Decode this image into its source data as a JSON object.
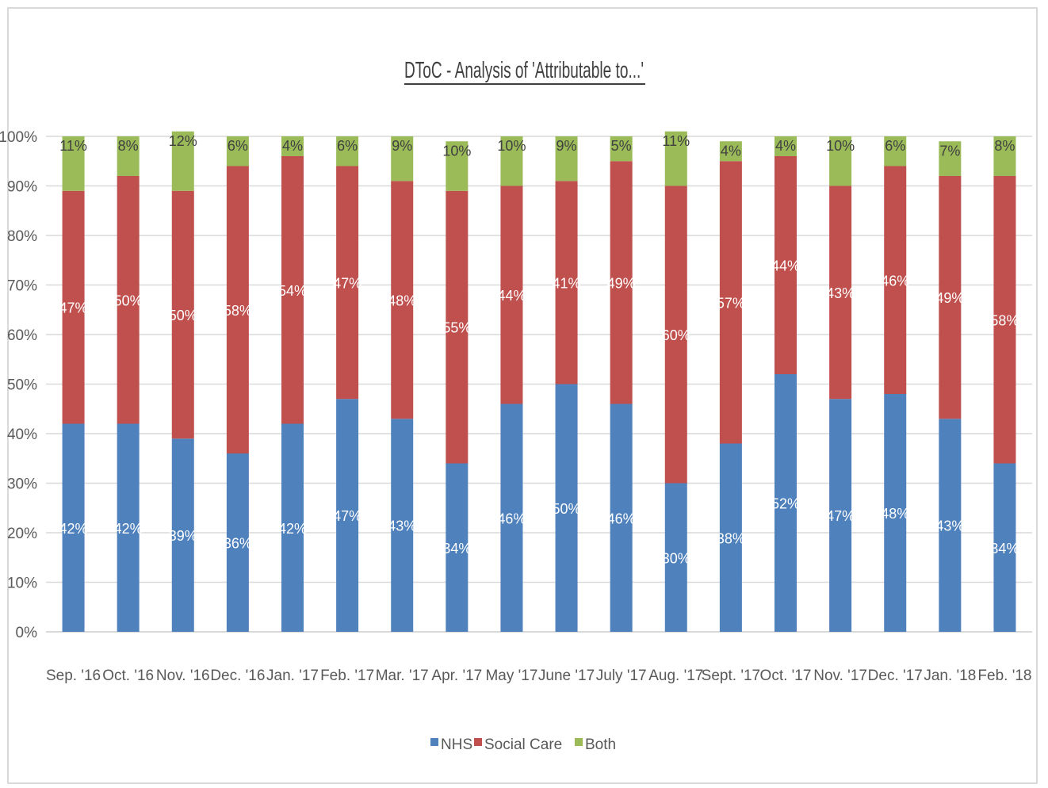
{
  "chart_data": {
    "type": "bar",
    "stacked": true,
    "title": "DToC - Analysis of 'Attributable to...'",
    "xlabel": "",
    "ylabel": "",
    "ylim": [
      0,
      100
    ],
    "yticks": [
      "0%",
      "10%",
      "20%",
      "30%",
      "40%",
      "50%",
      "60%",
      "70%",
      "80%",
      "90%",
      "100%"
    ],
    "grid": true,
    "legend_position": "bottom",
    "categories": [
      "Sep. '16",
      "Oct. '16",
      "Nov. '16",
      "Dec. '16",
      "Jan. '17",
      "Feb. '17",
      "Mar. '17",
      "Apr. '17",
      "May '17",
      "June '17",
      "July '17",
      "Aug. '17",
      "Sept. '17",
      "Oct. '17",
      "Nov. '17",
      "Dec. '17",
      "Jan. '18",
      "Feb. '18"
    ],
    "series": [
      {
        "name": "NHS",
        "color": "#4f81bd",
        "label_color": "#ffffff",
        "values": [
          42,
          42,
          39,
          36,
          42,
          47,
          43,
          34,
          46,
          50,
          46,
          30,
          38,
          52,
          47,
          48,
          43,
          34
        ],
        "labels": [
          "42%",
          "42%",
          "39%",
          "36%",
          "42%",
          "47%",
          "43%",
          "34%",
          "46%",
          "50%",
          "46%",
          "30%",
          "38%",
          "52%",
          "47%",
          "48%",
          "43%",
          "34%"
        ]
      },
      {
        "name": "Social Care",
        "color": "#c0504d",
        "label_color": "#ffffff",
        "values": [
          47,
          50,
          50,
          58,
          54,
          47,
          48,
          55,
          44,
          41,
          49,
          60,
          57,
          44,
          43,
          46,
          49,
          58
        ],
        "labels": [
          "47%",
          "50%",
          "50%",
          "58%",
          "54%",
          "47%",
          "48%",
          "55%",
          "44%",
          "41%",
          "49%",
          "60%",
          "57%",
          "44%",
          "43%",
          "46%",
          "49%",
          "58%"
        ]
      },
      {
        "name": "Both",
        "color": "#9bbb59",
        "label_color": "#404040",
        "values": [
          11,
          8,
          12,
          6,
          4,
          6,
          9,
          10,
          10,
          9,
          5,
          11,
          4,
          4,
          10,
          6,
          7,
          8
        ],
        "labels": [
          "11%",
          "8%",
          "12%",
          "6%",
          "4%",
          "6%",
          "9%",
          "10%",
          "10%",
          "9%",
          "5%",
          "11%",
          "4%",
          "4%",
          "10%",
          "6%",
          "7%",
          "8%"
        ]
      }
    ]
  }
}
